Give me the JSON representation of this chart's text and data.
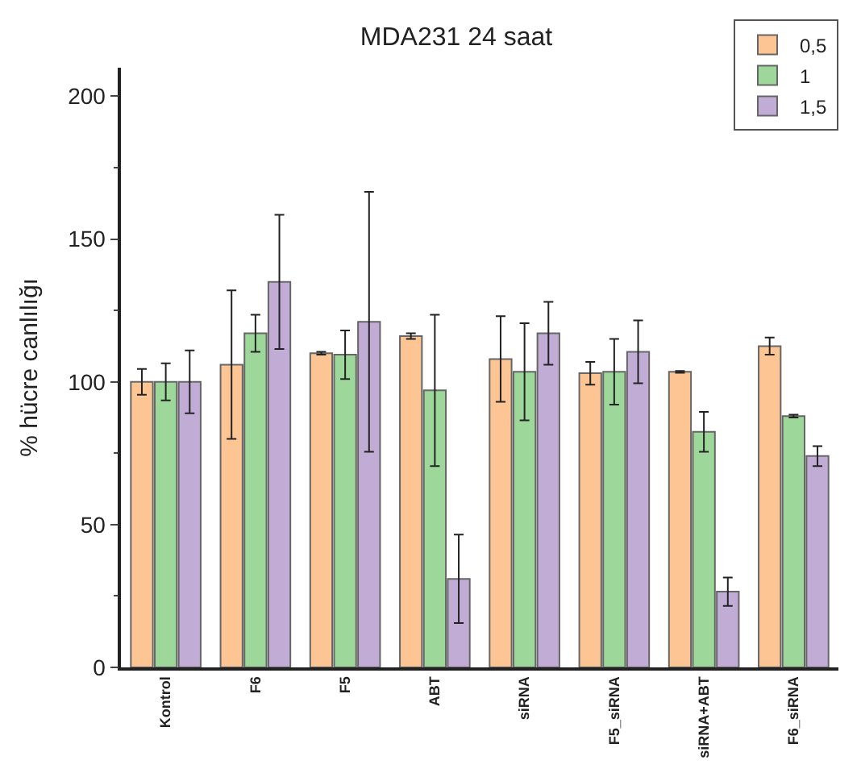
{
  "chart_data": {
    "type": "bar",
    "title": "MDA231 24 saat",
    "ylabel": "% hücre canlılığı",
    "categories": [
      "Kontrol",
      "F6",
      "F5",
      "ABT",
      "siRNA",
      "F5_siRNA",
      "siRNA+ABT",
      "F6_siRNA"
    ],
    "series": [
      {
        "name": "0,5",
        "color": "#fdc593",
        "values": [
          100,
          106,
          110,
          116,
          108,
          103,
          103.5,
          112.5
        ],
        "errors": [
          4.5,
          26,
          0.5,
          1,
          15,
          4,
          0.3,
          3
        ]
      },
      {
        "name": "1",
        "color": "#9dd89a",
        "values": [
          100,
          117,
          109.5,
          97,
          103.5,
          103.5,
          82.5,
          88
        ],
        "errors": [
          6.5,
          6.5,
          8.5,
          26.5,
          17,
          11.5,
          7,
          0.5
        ]
      },
      {
        "name": "1,5",
        "color": "#c1acd6",
        "values": [
          100,
          135,
          121,
          31,
          117,
          110.5,
          26.5,
          74
        ],
        "errors": [
          11,
          23.5,
          45.5,
          15.5,
          11,
          11,
          5,
          3.5
        ]
      }
    ],
    "ylim": [
      0,
      210
    ],
    "yticks": [
      0,
      50,
      100,
      150,
      200
    ],
    "legend": "top right"
  }
}
